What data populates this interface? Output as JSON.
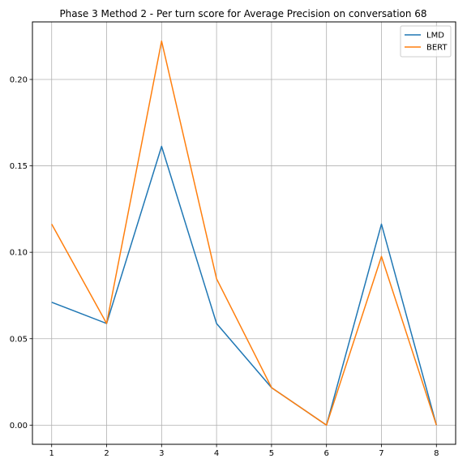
{
  "chart_data": {
    "type": "line",
    "title": "Phase 3 Method 2 - Per turn score for Average Precision on conversation 68",
    "xlabel": "",
    "ylabel": "",
    "x": [
      1,
      2,
      3,
      4,
      5,
      6,
      7,
      8
    ],
    "xticks": [
      "1",
      "2",
      "3",
      "4",
      "5",
      "6",
      "7",
      "8"
    ],
    "yticks": [
      "0.00",
      "0.05",
      "0.10",
      "0.15",
      "0.20"
    ],
    "xlim": [
      0.65,
      8.35
    ],
    "ylim": [
      -0.0111,
      0.2333
    ],
    "grid": true,
    "legend_position": "top-right",
    "series": [
      {
        "name": "LMD",
        "color": "#1f77b4",
        "values": [
          0.0711,
          0.0588,
          0.1613,
          0.0588,
          0.0217,
          0.0,
          0.1163,
          0.0
        ]
      },
      {
        "name": "BERT",
        "color": "#ff7f0e",
        "values": [
          0.1163,
          0.0588,
          0.2222,
          0.0847,
          0.0217,
          0.0,
          0.0976,
          0.0
        ]
      }
    ]
  }
}
